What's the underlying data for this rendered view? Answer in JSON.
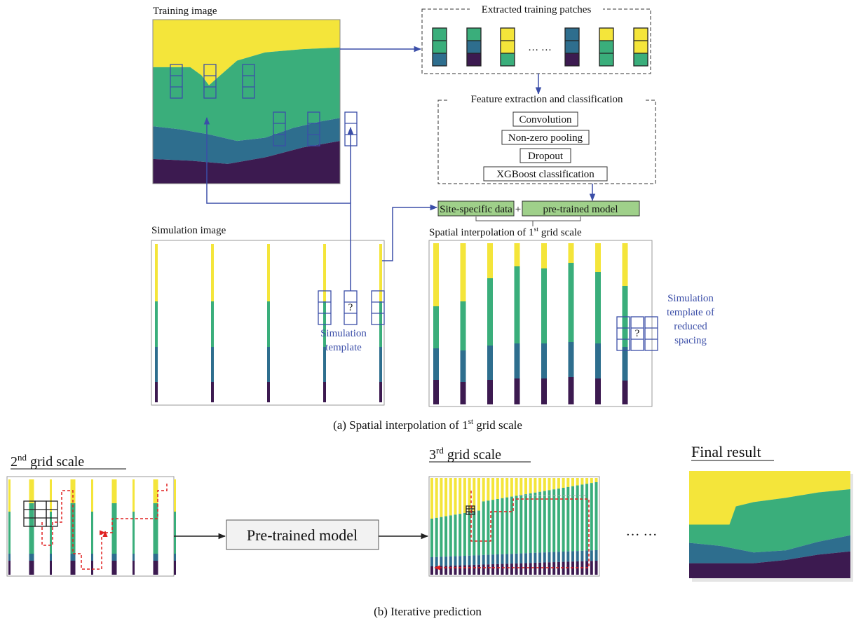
{
  "panel_a": {
    "training_image": {
      "label": "Training image"
    },
    "patches": {
      "label": "Extracted training patches",
      "ellipsis": "… …"
    },
    "features": {
      "label": "Feature extraction and classification",
      "steps": [
        "Convolution",
        "Non-zero pooling",
        "Dropout",
        "XGBoost classification"
      ]
    },
    "inputs": {
      "site_data": "Site-specific data",
      "plus": "+",
      "model": "pre-trained model"
    },
    "simulation_image": {
      "label": "Simulation image",
      "unknown": "?",
      "template_lines": [
        "Simulation",
        "template"
      ]
    },
    "interpolation": {
      "label": {
        "text": "Spatial interpolation of 1",
        "sup": "st",
        "tail": " grid scale"
      },
      "unknown": "?",
      "template_lines": [
        "Simulation",
        "template of",
        "reduced",
        "spacing"
      ]
    },
    "caption": {
      "text": "(a) Spatial interpolation of 1",
      "sup": "st",
      "tail": " grid scale"
    }
  },
  "panel_b": {
    "second": {
      "text": "2",
      "sup": "nd",
      "tail": " grid scale"
    },
    "model": "Pre-trained model",
    "third": {
      "text": "3",
      "sup": "rd",
      "tail": " grid scale"
    },
    "ellipsis": "… …",
    "final": "Final result",
    "caption": "(b) Iterative prediction"
  }
}
